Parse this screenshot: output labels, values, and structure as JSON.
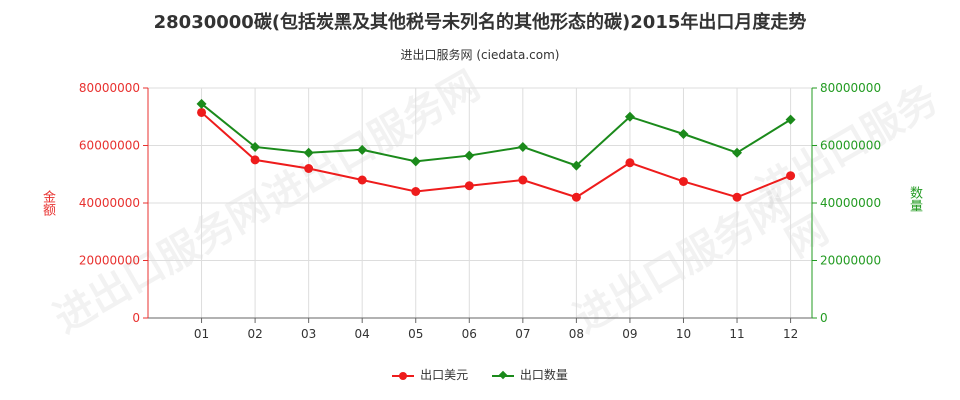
{
  "title": "28030000碳(包括炭黑及其他税号未列名的其他形态的碳)2015年出口月度走势",
  "subtitle": "进出口服务网 (ciedata.com)",
  "watermark": "进出口服务网",
  "chart_data": {
    "type": "line",
    "title": "28030000碳(包括炭黑及其他税号未列名的其他形态的碳)2015年出口月度走势",
    "categories": [
      "01",
      "02",
      "03",
      "04",
      "05",
      "06",
      "07",
      "08",
      "09",
      "10",
      "11",
      "12"
    ],
    "left_axis": {
      "label": "金额",
      "ylim": [
        0,
        80000000
      ],
      "ticks": [
        "0",
        "20000000",
        "40000000",
        "60000000",
        "80000000"
      ],
      "color": "#e8312f"
    },
    "right_axis": {
      "label": "数量",
      "ylim": [
        0,
        80000000
      ],
      "ticks": [
        "0",
        "20000000",
        "40000000",
        "60000000",
        "80000000"
      ],
      "color": "#239b22"
    },
    "grid": true,
    "legend_position": "bottom-center",
    "series": [
      {
        "name": "出口美元",
        "axis": "left",
        "color": "#ee1c1c",
        "marker": "circle",
        "values": [
          71500000,
          55000000,
          52000000,
          48000000,
          44000000,
          46000000,
          48000000,
          42000000,
          54000000,
          47500000,
          42000000,
          49500000
        ]
      },
      {
        "name": "出口数量",
        "axis": "right",
        "color": "#1b8a1b",
        "marker": "diamond",
        "values": [
          74500000,
          59500000,
          57500000,
          58500000,
          54500000,
          56500000,
          59500000,
          53000000,
          70000000,
          64000000,
          57500000,
          69000000
        ]
      }
    ]
  }
}
